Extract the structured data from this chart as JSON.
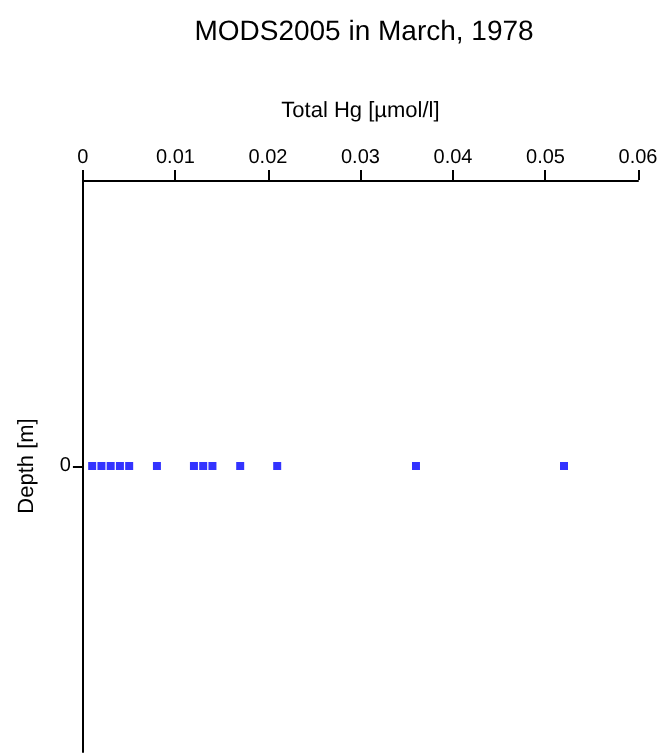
{
  "chart_data": {
    "type": "scatter",
    "orientation": "horizontal",
    "title": "MODS2005 in March, 1978",
    "xlabel": "Total Hg [µmol/l]",
    "ylabel": "Depth [m]",
    "categories": [
      "0"
    ],
    "series": [
      {
        "color": "#0000ff",
        "x": [
          "0",
          "0",
          "0",
          "0",
          "0",
          "0",
          "0",
          "0",
          "0",
          "0",
          "0",
          "0",
          "0"
        ],
        "values": [
          0.001,
          0.002,
          0.003,
          0.004,
          0.005,
          0.008,
          0.012,
          0.013,
          0.014,
          0.017,
          0.021,
          0.036,
          0.052
        ]
      }
    ],
    "xlim": [
      0,
      0.06
    ],
    "xticks": [
      0,
      0.01,
      0.02,
      0.03,
      0.04,
      0.05,
      0.06
    ],
    "marker": "square"
  }
}
